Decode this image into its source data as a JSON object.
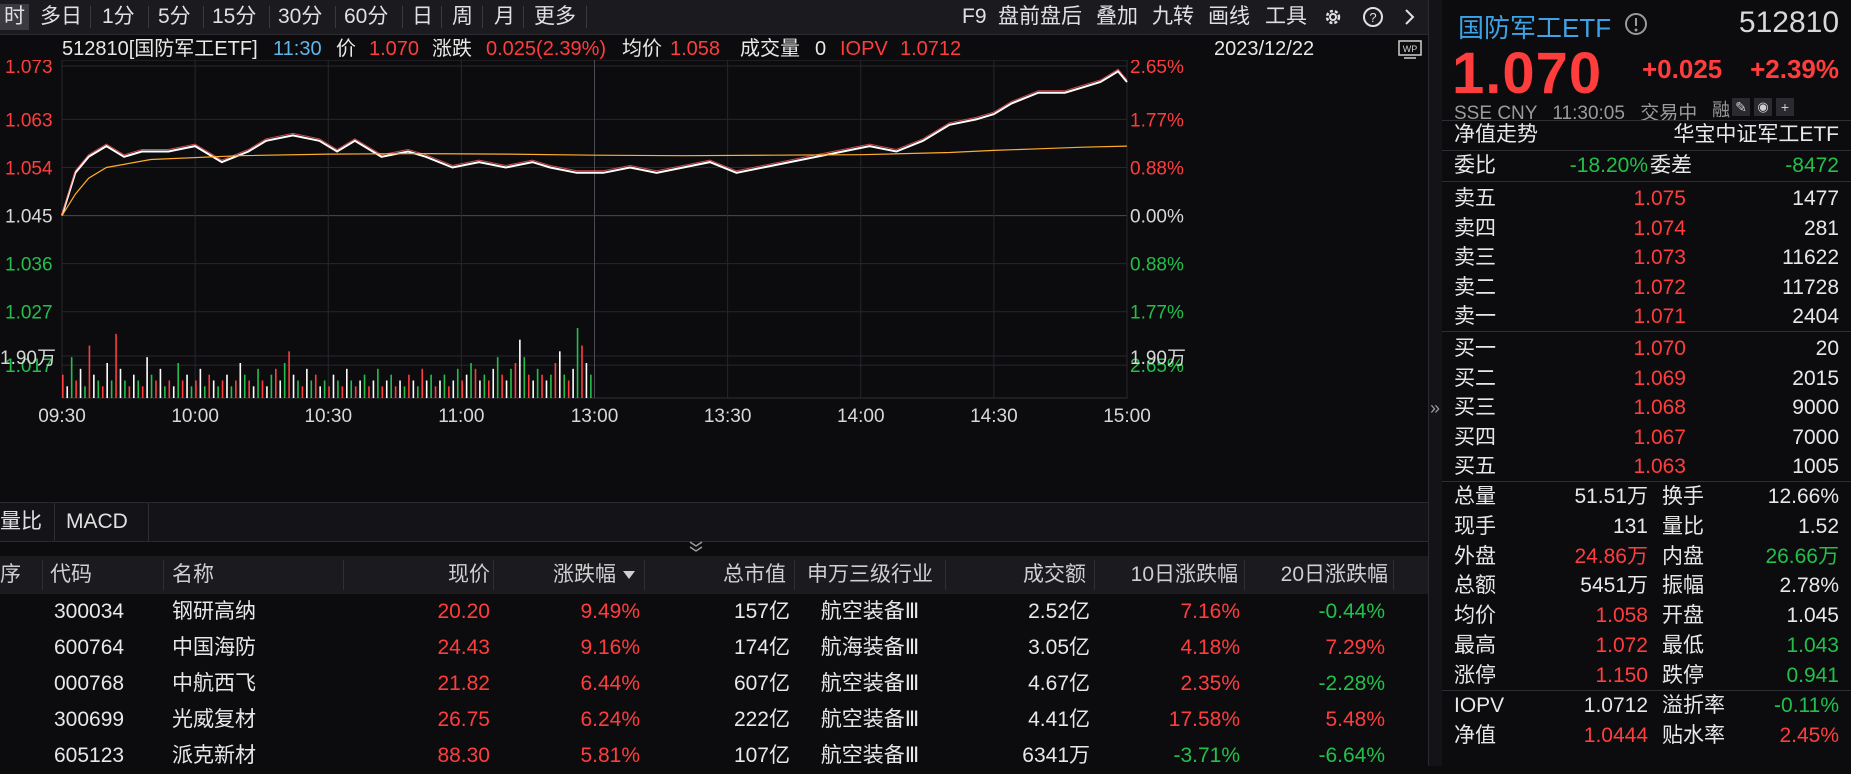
{
  "toolbar": {
    "left_tabs": [
      "时",
      "多日",
      "1分",
      "5分",
      "15分",
      "30分",
      "60分",
      "日",
      "周",
      "月",
      "更多"
    ],
    "right_tabs": [
      "F9",
      "盘前盘后",
      "叠加",
      "九转",
      "画线",
      "工具"
    ],
    "gear_icon": "gear-icon",
    "help_icon": "help-icon",
    "chevron_icon": "chevron-right-icon"
  },
  "info": {
    "symbol": "512810[国防军工ETF]",
    "time": "11:30",
    "price_label": "价",
    "price": "1.070",
    "change_label": "涨跌",
    "change": "0.025(2.39%)",
    "avg_label": "均价",
    "avg": "1.058",
    "vol_label": "成交量",
    "vol": "0",
    "iopv_label": "IOPV",
    "iopv": "1.0712",
    "date": "2023/12/22",
    "wp_icon": "wp-icon"
  },
  "chart_data": {
    "type": "line",
    "title": "",
    "x_ticks": [
      "09:30",
      "10:00",
      "10:30",
      "11:00",
      "13:00",
      "13:30",
      "14:00",
      "14:30",
      "15:00"
    ],
    "y_ticks_left": [
      "1.073",
      "1.063",
      "1.054",
      "1.045",
      "1.036",
      "1.027",
      "1.017"
    ],
    "y_ticks_right": [
      "2.65%",
      "1.77%",
      "0.88%",
      "0.00%",
      "0.88%",
      "1.77%",
      "2.65%"
    ],
    "prev_close": 1.045,
    "ylim": [
      1.017,
      1.073
    ],
    "volume_scale_label": "1.90万",
    "session_minutes": 240,
    "series": [
      {
        "name": "价",
        "color": "#ffffff",
        "x": [
          0,
          3,
          6,
          10,
          14,
          18,
          24,
          30,
          36,
          42,
          46,
          52,
          58,
          62,
          66,
          72,
          78,
          82,
          88,
          94,
          100,
          106,
          110,
          116,
          122,
          128,
          134,
          140,
          146,
          152,
          158,
          164,
          170,
          176,
          182,
          188,
          194,
          200,
          206,
          210,
          214,
          220,
          226,
          230,
          234,
          236,
          238,
          240
        ],
        "values": [
          1.045,
          1.053,
          1.056,
          1.058,
          1.056,
          1.057,
          1.057,
          1.058,
          1.055,
          1.057,
          1.059,
          1.06,
          1.059,
          1.057,
          1.059,
          1.056,
          1.057,
          1.056,
          1.054,
          1.055,
          1.054,
          1.055,
          1.054,
          1.053,
          1.053,
          1.054,
          1.053,
          1.054,
          1.055,
          1.053,
          1.054,
          1.055,
          1.056,
          1.057,
          1.058,
          1.057,
          1.059,
          1.062,
          1.063,
          1.064,
          1.066,
          1.068,
          1.068,
          1.069,
          1.07,
          1.071,
          1.072,
          1.07
        ]
      },
      {
        "name": "均价",
        "color": "#ffae2a",
        "x": [
          0,
          3,
          6,
          10,
          20,
          40,
          60,
          80,
          100,
          120,
          140,
          160,
          180,
          200,
          210,
          220,
          230,
          240
        ],
        "values": [
          1.045,
          1.049,
          1.052,
          1.054,
          1.0555,
          1.0562,
          1.0565,
          1.0566,
          1.0565,
          1.0563,
          1.0562,
          1.0563,
          1.0564,
          1.0568,
          1.0572,
          1.0575,
          1.0578,
          1.058
        ]
      }
    ],
    "volume": [
      4,
      2,
      7,
      3,
      5,
      2,
      9,
      4,
      3,
      2,
      6,
      3,
      11,
      5,
      3,
      2,
      4,
      3,
      2,
      7,
      4,
      3,
      5,
      2,
      3,
      2,
      6,
      3,
      4,
      2,
      3,
      5,
      2,
      4,
      3,
      2,
      3,
      4,
      2,
      3,
      6,
      4,
      3,
      2,
      5,
      3,
      2,
      4,
      5,
      3,
      6,
      8,
      4,
      3,
      2,
      5,
      3,
      4,
      2,
      3,
      2,
      4,
      3,
      2,
      5,
      3,
      2,
      3,
      4,
      2,
      3,
      5,
      2,
      3,
      4,
      2,
      3,
      2,
      4,
      3,
      2,
      5,
      3,
      4,
      2,
      3,
      4,
      2,
      3,
      5,
      3,
      4,
      6,
      5,
      3,
      4,
      3,
      5,
      7,
      4,
      3,
      5,
      6,
      10,
      7,
      4,
      3,
      5,
      4,
      3,
      4,
      6,
      8,
      4,
      3,
      5,
      12,
      9,
      6,
      4
    ],
    "volume_colors": "mixed"
  },
  "indicator_tabs": [
    "量比",
    "MACD"
  ],
  "collapse_icon": "double-chevron-down-icon",
  "table": {
    "headers": [
      "序号",
      "代码",
      "名称",
      "现价",
      "涨跌幅",
      "总市值",
      "申万三级行业",
      "成交额",
      "10日涨跌幅",
      "20日涨跌幅"
    ],
    "sort_icon": "sort-desc-icon",
    "rows": [
      {
        "code": "300034",
        "name": "钢研高纳",
        "price": "20.20",
        "pct": "9.49%",
        "cap": "157亿",
        "ind": "航空装备Ⅲ",
        "amt": "2.52亿",
        "d10": "7.16%",
        "d20": "-0.44%"
      },
      {
        "code": "600764",
        "name": "中国海防",
        "price": "24.43",
        "pct": "9.16%",
        "cap": "174亿",
        "ind": "航海装备Ⅲ",
        "amt": "3.05亿",
        "d10": "4.18%",
        "d20": "7.29%"
      },
      {
        "code": "000768",
        "name": "中航西飞",
        "price": "21.82",
        "pct": "6.44%",
        "cap": "607亿",
        "ind": "航空装备Ⅲ",
        "amt": "4.67亿",
        "d10": "2.35%",
        "d20": "-2.28%"
      },
      {
        "code": "300699",
        "name": "光威复材",
        "price": "26.75",
        "pct": "6.24%",
        "cap": "222亿",
        "ind": "航空装备Ⅲ",
        "amt": "4.41亿",
        "d10": "17.58%",
        "d20": "5.48%"
      },
      {
        "code": "605123",
        "name": "派克新材",
        "price": "88.30",
        "pct": "5.81%",
        "cap": "107亿",
        "ind": "航空装备Ⅲ",
        "amt": "6341万",
        "d10": "-3.71%",
        "d20": "-6.64%"
      }
    ]
  },
  "panel": {
    "name": "国防军工ETF",
    "alert_icon": "alert-icon",
    "code": "512810",
    "price": "1.070",
    "change": "+0.025",
    "pct": "+2.39%",
    "market": "SSE",
    "currency": "CNY",
    "time": "11:30:05",
    "status": "交易中",
    "rong": "融",
    "nav_label": "净值走势",
    "fund": "华宝中证军工ETF",
    "weibi_label": "委比",
    "weibi": "-18.20%",
    "weicha_label": "委差",
    "weicha": "-8472",
    "asks": [
      {
        "label": "卖五",
        "price": "1.075",
        "vol": "1477"
      },
      {
        "label": "卖四",
        "price": "1.074",
        "vol": "281"
      },
      {
        "label": "卖三",
        "price": "1.073",
        "vol": "11622"
      },
      {
        "label": "卖二",
        "price": "1.072",
        "vol": "11728"
      },
      {
        "label": "卖一",
        "price": "1.071",
        "vol": "2404"
      }
    ],
    "bids": [
      {
        "label": "买一",
        "price": "1.070",
        "vol": "20"
      },
      {
        "label": "买二",
        "price": "1.069",
        "vol": "2015"
      },
      {
        "label": "买三",
        "price": "1.068",
        "vol": "9000"
      },
      {
        "label": "买四",
        "price": "1.067",
        "vol": "7000"
      },
      {
        "label": "买五",
        "price": "1.063",
        "vol": "1005"
      }
    ],
    "stats": [
      {
        "l1": "总量",
        "v1": "51.51万",
        "c1": "white",
        "l2": "换手",
        "v2": "12.66%",
        "c2": "white"
      },
      {
        "l1": "现手",
        "v1": "131",
        "c1": "white",
        "l2": "量比",
        "v2": "1.52",
        "c2": "white"
      },
      {
        "l1": "外盘",
        "v1": "24.86万",
        "c1": "red",
        "l2": "内盘",
        "v2": "26.66万",
        "c2": "green"
      },
      {
        "l1": "总额",
        "v1": "5451万",
        "c1": "white",
        "l2": "振幅",
        "v2": "2.78%",
        "c2": "white"
      },
      {
        "l1": "均价",
        "v1": "1.058",
        "c1": "red",
        "l2": "开盘",
        "v2": "1.045",
        "c2": "white"
      },
      {
        "l1": "最高",
        "v1": "1.072",
        "c1": "red",
        "l2": "最低",
        "v2": "1.043",
        "c2": "green"
      },
      {
        "l1": "涨停",
        "v1": "1.150",
        "c1": "red",
        "l2": "跌停",
        "v2": "0.941",
        "c2": "green"
      }
    ],
    "iopv_rows": [
      {
        "l1": "IOPV",
        "v1": "1.0712",
        "c1": "white",
        "l2": "溢折率",
        "v2": "-0.11%",
        "c2": "green"
      },
      {
        "l1": "净值",
        "v1": "1.0444",
        "c1": "red",
        "l2": "贴水率",
        "v2": "2.45%",
        "c2": "red"
      }
    ]
  }
}
